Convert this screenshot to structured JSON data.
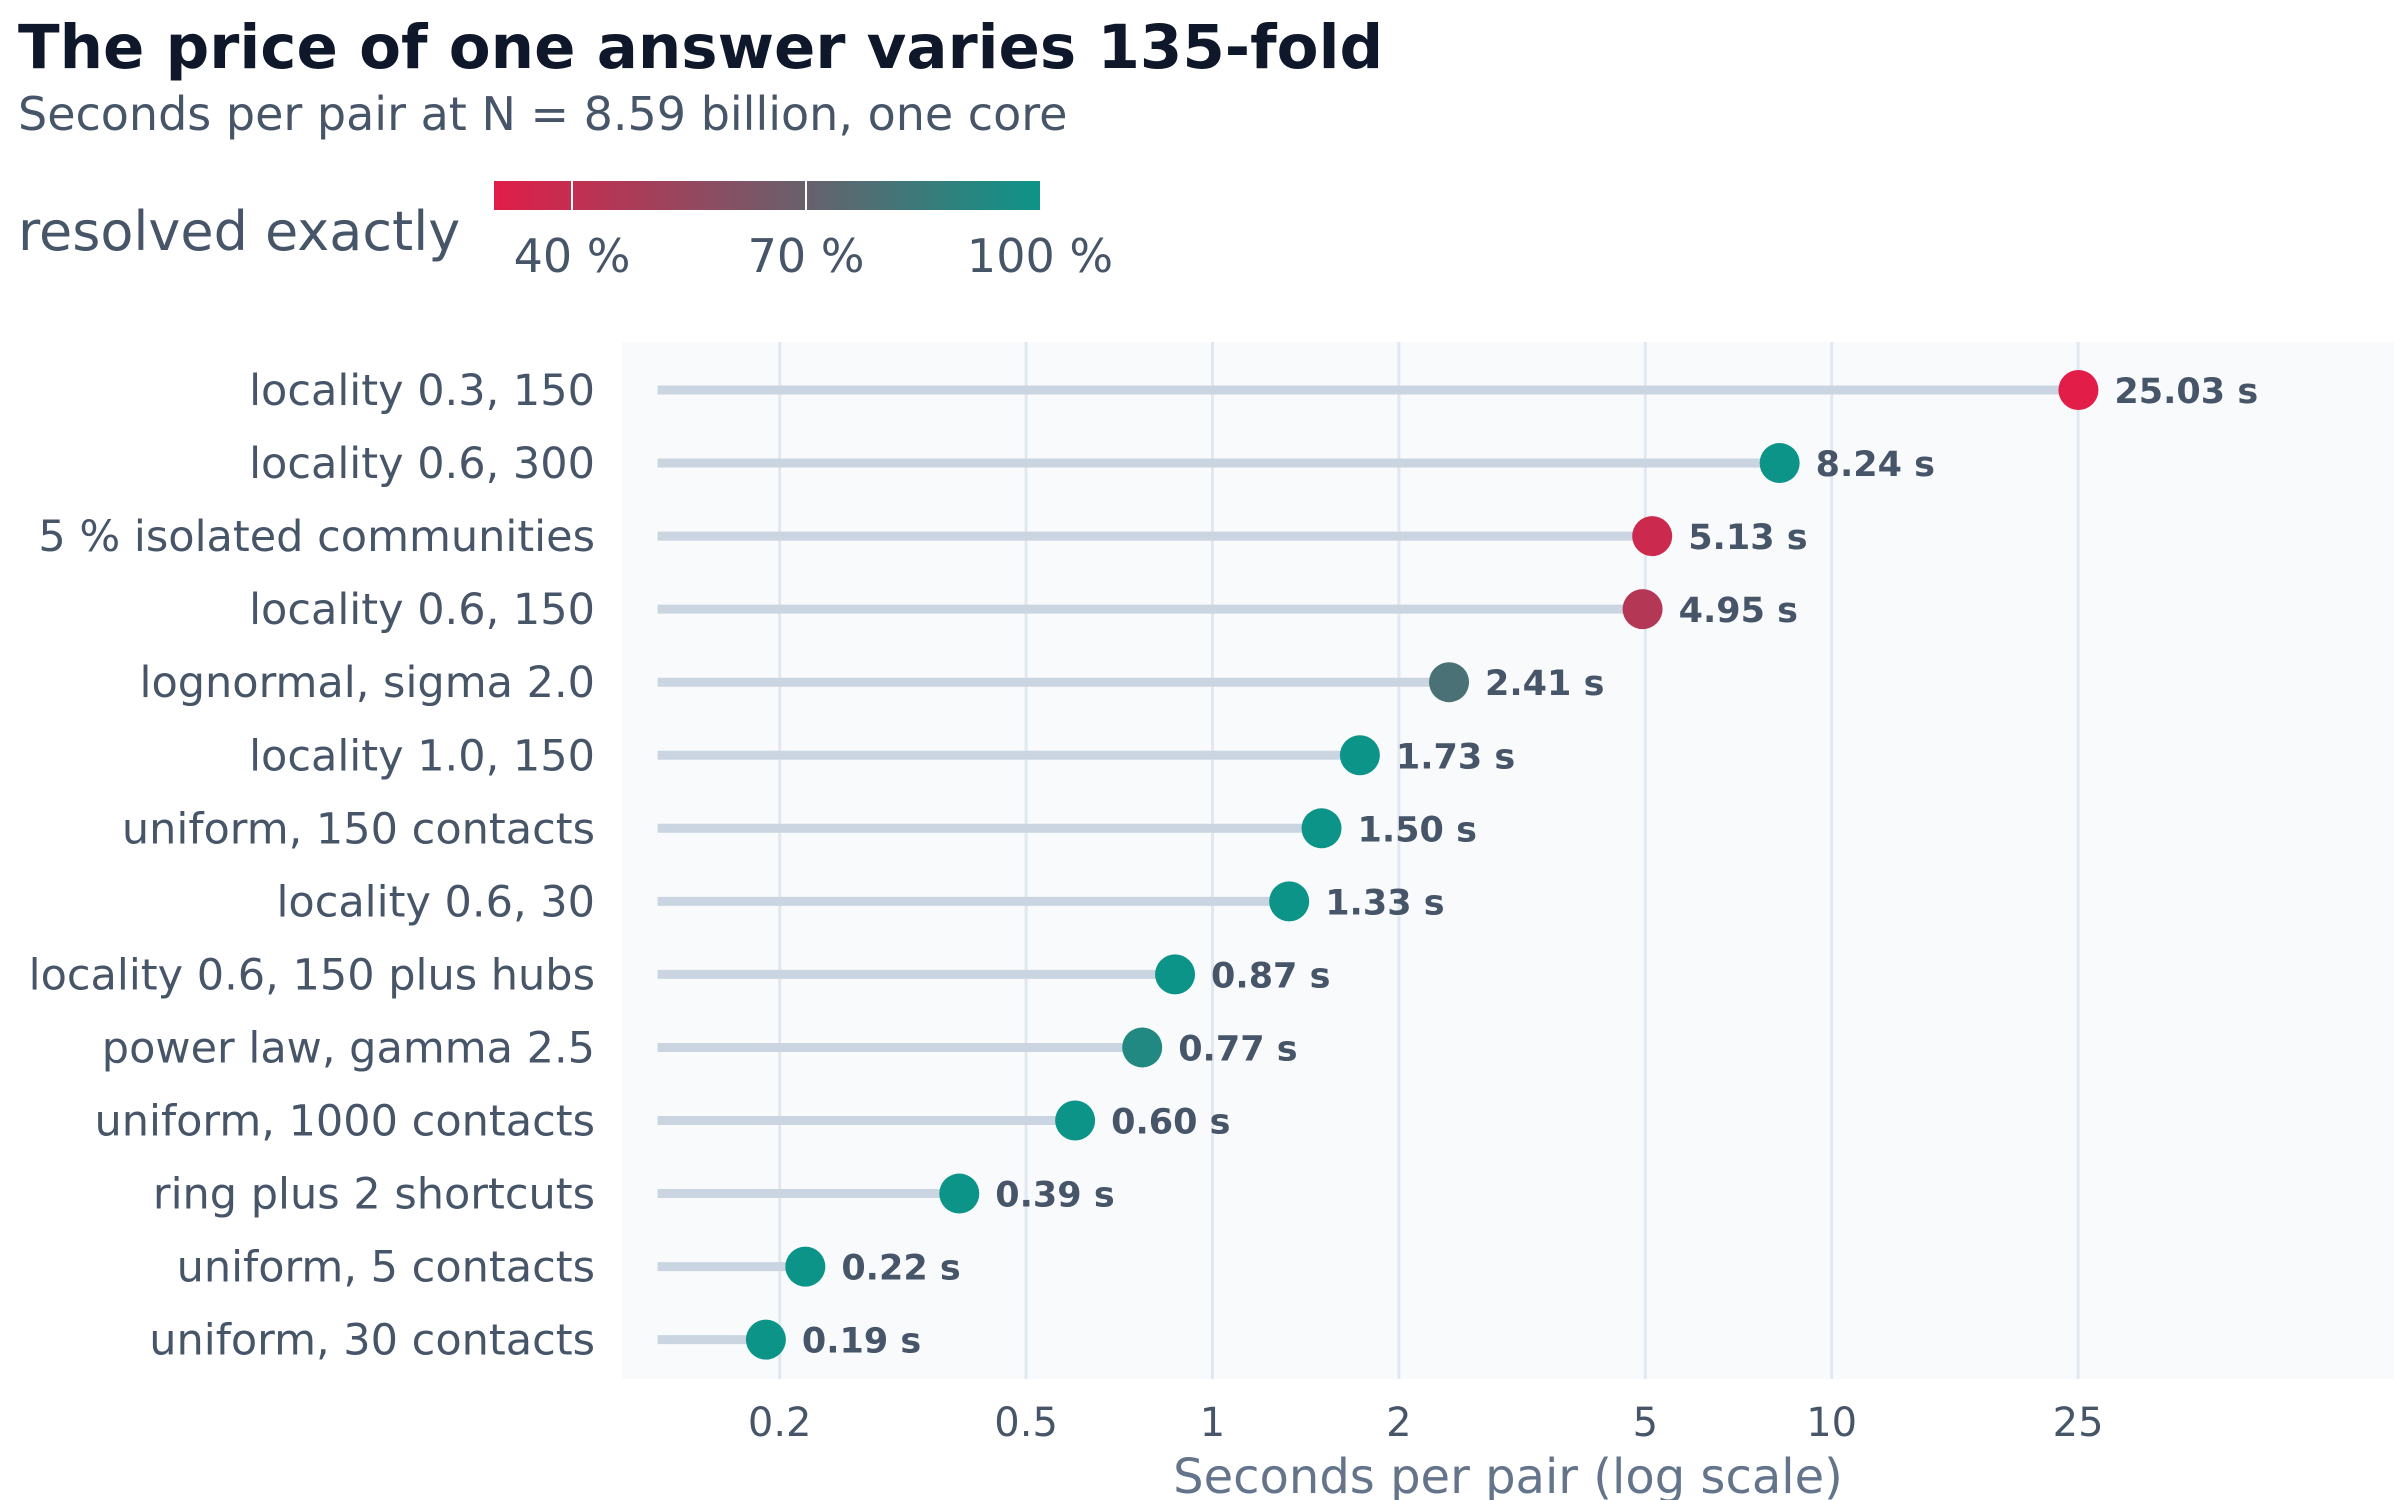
{
  "chart_data": {
    "type": "lollipop",
    "title": "The price of one answer varies 135-fold",
    "subtitle": "Seconds per pair at N = 8.59 billion, one core",
    "xlabel": "Seconds per pair (log scale)",
    "ylabel": "",
    "x_scale": "log",
    "xlim": [
      0.127,
      50
    ],
    "x_ticks": [
      0.2,
      0.5,
      1,
      2,
      5,
      10,
      25
    ],
    "x_tick_labels": [
      "0.2",
      "0.5",
      "1",
      "2",
      "5",
      "10",
      "25"
    ],
    "legend": {
      "title": "resolved exactly",
      "ticks": [
        "40 %",
        "70 %",
        "100 %"
      ],
      "tick_values": [
        40,
        70,
        100
      ],
      "range": [
        30,
        100
      ],
      "colors": [
        "#e11d48",
        "#0d9488"
      ]
    },
    "categories": [
      "locality 0.3, 150",
      "locality 0.6, 300",
      "5 % isolated communities",
      "locality 0.6, 150",
      "lognormal, sigma 2.0",
      "locality 1.0, 150",
      "uniform, 150 contacts",
      "locality 0.6, 30",
      "locality 0.6, 150 plus hubs",
      "power law, gamma 2.5",
      "uniform, 1000 contacts",
      "ring plus 2 shortcuts",
      "uniform, 5 contacts",
      "uniform, 30 contacts"
    ],
    "values": [
      25.03,
      8.24,
      5.13,
      4.95,
      2.41,
      1.73,
      1.5,
      1.33,
      0.87,
      0.77,
      0.6,
      0.39,
      0.22,
      0.19
    ],
    "value_labels": [
      "25.03 s",
      "8.24 s",
      "5.13 s",
      "4.95 s",
      "2.41 s",
      "1.73 s",
      "1.50 s",
      "1.33 s",
      "0.87 s",
      "0.77 s",
      "0.60 s",
      "0.39 s",
      "0.22 s",
      "0.19 s"
    ],
    "resolved_exactly_pct": [
      30,
      100,
      37,
      45,
      80,
      100,
      100,
      100,
      100,
      93,
      100,
      100,
      100,
      100
    ],
    "grid": true,
    "colors": {
      "panel_background": "#f8fafc",
      "gridline": "#e2e8f0",
      "stem": "#cbd5e1"
    }
  }
}
